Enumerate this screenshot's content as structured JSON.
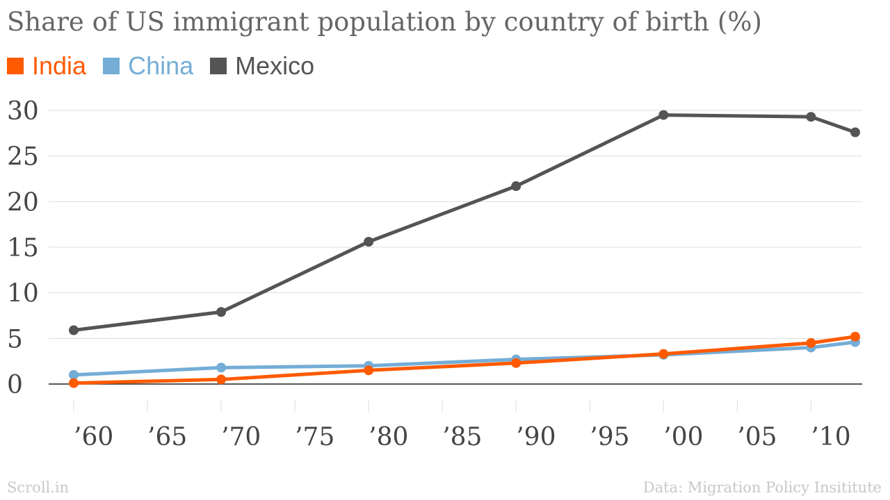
{
  "chart_data": {
    "type": "line",
    "title": "Share of US immigrant population by country of birth (%)",
    "x": [
      1960,
      1970,
      1980,
      1990,
      2000,
      2010,
      2013
    ],
    "x_ticks": [
      1960,
      1965,
      1970,
      1975,
      1980,
      1985,
      1990,
      1995,
      2000,
      2005,
      2010
    ],
    "x_tick_labels": [
      "’60",
      "’65",
      "’70",
      "’75",
      "’80",
      "’85",
      "’90",
      "’95",
      "’00",
      "’05",
      "’10"
    ],
    "xlim": [
      1960,
      2013
    ],
    "y_ticks": [
      0,
      5,
      10,
      15,
      20,
      25,
      30
    ],
    "y_tick_labels": [
      "0",
      "5",
      "10",
      "15",
      "20",
      "25",
      "30"
    ],
    "ylim": [
      0,
      30
    ],
    "grid": true,
    "legend_position": "top-left",
    "series": [
      {
        "name": "India",
        "color": "#ff5a00",
        "values": [
          0.1,
          0.5,
          1.5,
          2.3,
          3.3,
          4.5,
          5.2
        ]
      },
      {
        "name": "China",
        "color": "#74add6",
        "values": [
          1.0,
          1.8,
          2.0,
          2.7,
          3.2,
          4.0,
          4.6
        ]
      },
      {
        "name": "Mexico",
        "color": "#545454",
        "values": [
          5.9,
          7.9,
          15.6,
          21.7,
          29.5,
          29.3,
          27.6
        ]
      }
    ],
    "source_left": "Scroll.in",
    "source_right": "Data: Migration Policy Insititute"
  }
}
